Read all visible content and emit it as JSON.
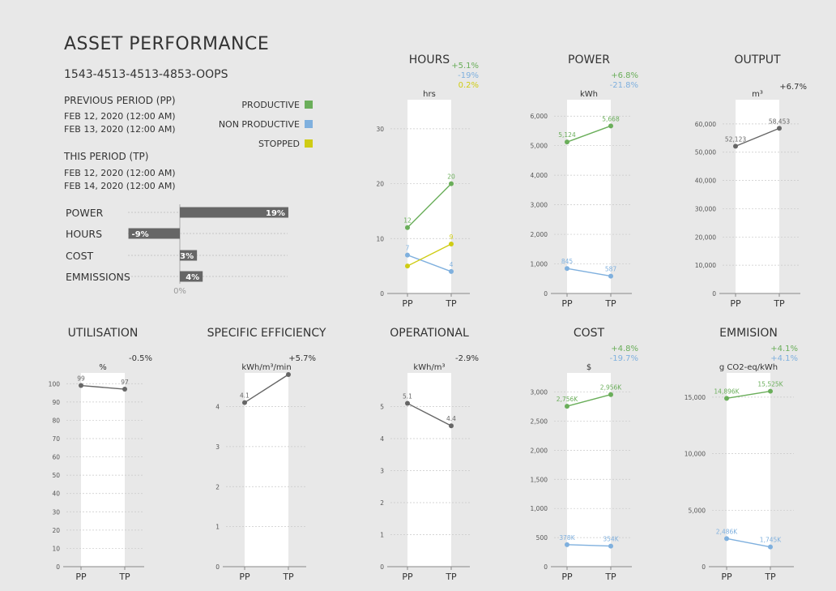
{
  "header": {
    "title": "ASSET PERFORMANCE",
    "asset_id": "1543-4513-4513-4853-OOPS",
    "previous_period": {
      "label": "PREVIOUS PERIOD (PP)",
      "start": "FEB 12, 2020 (12:00 AM)",
      "end": "FEB 13, 2020 (12:00 AM)"
    },
    "this_period": {
      "label": "THIS PERIOD (TP)",
      "start": "FEB 12, 2020 (12:00 AM)",
      "end": "FEB 14, 2020 (12:00 AM)"
    }
  },
  "legend": [
    {
      "label": "PRODUCTIVE",
      "color": "#6aae5a"
    },
    {
      "label": "NON PRODUCTIVE",
      "color": "#7fb0de"
    },
    {
      "label": "STOPPED",
      "color": "#cfcc14"
    }
  ],
  "colors": {
    "productive": "#6aae5a",
    "non_productive": "#7fb0de",
    "stopped": "#cfcc14",
    "single": "#666666",
    "bar": "#666666"
  },
  "chart_data": [
    {
      "id": "summary",
      "type": "bar",
      "orientation": "horizontal",
      "categories": [
        "POWER",
        "HOURS",
        "COST",
        "EMMISSIONS"
      ],
      "values": [
        19,
        -9,
        3,
        4
      ],
      "value_labels": [
        "19%",
        "-9%",
        "3%",
        "4%"
      ],
      "zero_label": "0%"
    },
    {
      "id": "hours",
      "type": "line",
      "title": "HOURS",
      "unit": "hrs",
      "categories": [
        "PP",
        "TP"
      ],
      "ylim": [
        0,
        35
      ],
      "yticks": [
        0,
        10,
        20,
        30
      ],
      "yticklabels": [
        "0",
        "10",
        "20",
        "30"
      ],
      "changes": [
        {
          "text": "+5.1%",
          "color": "#6aae5a"
        },
        {
          "text": "-19%",
          "color": "#7fb0de"
        },
        {
          "text": "0.2%",
          "color": "#cfcc14"
        }
      ],
      "series": [
        {
          "name": "PRODUCTIVE",
          "color": "#6aae5a",
          "values": [
            12,
            20
          ],
          "labels": [
            "12",
            "20"
          ]
        },
        {
          "name": "NON PRODUCTIVE",
          "color": "#7fb0de",
          "values": [
            7,
            4
          ],
          "labels": [
            "7",
            "4"
          ]
        },
        {
          "name": "STOPPED",
          "color": "#cfcc14",
          "values": [
            5,
            9
          ],
          "labels": [
            "",
            "9"
          ]
        }
      ]
    },
    {
      "id": "power",
      "type": "line",
      "title": "POWER",
      "unit": "kWh",
      "categories": [
        "PP",
        "TP"
      ],
      "ylim": [
        0,
        6500
      ],
      "yticks": [
        0,
        1000,
        2000,
        3000,
        4000,
        5000,
        6000
      ],
      "yticklabels": [
        "0",
        "1,000",
        "2,000",
        "3,000",
        "4,000",
        "5,000",
        "6,000"
      ],
      "changes": [
        {
          "text": "+6.8%",
          "color": "#6aae5a"
        },
        {
          "text": "-21.8%",
          "color": "#7fb0de"
        }
      ],
      "series": [
        {
          "name": "PRODUCTIVE",
          "color": "#6aae5a",
          "values": [
            5124,
            5668
          ],
          "labels": [
            "5,124",
            "5,668"
          ]
        },
        {
          "name": "NON PRODUCTIVE",
          "color": "#7fb0de",
          "values": [
            845,
            587
          ],
          "labels": [
            "845",
            "587"
          ]
        }
      ]
    },
    {
      "id": "output",
      "type": "line",
      "title": "OUTPUT",
      "unit": "m³",
      "categories": [
        "PP",
        "TP"
      ],
      "ylim": [
        0,
        68000
      ],
      "yticks": [
        0,
        10000,
        20000,
        30000,
        40000,
        50000,
        60000
      ],
      "yticklabels": [
        "0",
        "10,000",
        "20,000",
        "30,000",
        "40,000",
        "50,000",
        "60,000"
      ],
      "changes": [
        {
          "text": "+6.7%",
          "color": "#333333"
        }
      ],
      "series": [
        {
          "name": "OUTPUT",
          "color": "#666666",
          "values": [
            52123,
            58453
          ],
          "labels": [
            "52,123",
            "58,453"
          ]
        }
      ]
    },
    {
      "id": "utilisation",
      "type": "line",
      "title": "UTILISATION",
      "unit": "%",
      "categories": [
        "PP",
        "TP"
      ],
      "ylim": [
        0,
        105
      ],
      "yticks": [
        0,
        10,
        20,
        30,
        40,
        50,
        60,
        70,
        80,
        90,
        100
      ],
      "yticklabels": [
        "0",
        "10",
        "20",
        "30",
        "40",
        "50",
        "60",
        "70",
        "80",
        "90",
        "100"
      ],
      "changes": [
        {
          "text": "-0.5%",
          "color": "#333333"
        }
      ],
      "series": [
        {
          "name": "UTILISATION",
          "color": "#666666",
          "values": [
            99,
            97
          ],
          "labels": [
            "99",
            "97"
          ]
        }
      ]
    },
    {
      "id": "specific_efficiency",
      "type": "line",
      "title": "SPECIFIC EFFICIENCY",
      "unit": "kWh/m³/min",
      "categories": [
        "PP",
        "TP"
      ],
      "ylim": [
        0,
        4.8
      ],
      "yticks": [
        0,
        1,
        2,
        3,
        4
      ],
      "yticklabels": [
        "0",
        "1",
        "2",
        "3",
        "4"
      ],
      "changes": [
        {
          "text": "+5.7%",
          "color": "#333333"
        }
      ],
      "series": [
        {
          "name": "SPECIFIC EFFICIENCY",
          "color": "#666666",
          "values": [
            4.1,
            4.8
          ],
          "labels": [
            "4.1",
            ""
          ]
        }
      ]
    },
    {
      "id": "operational",
      "type": "line",
      "title": "OPERATIONAL",
      "unit": "kWh/m³",
      "categories": [
        "PP",
        "TP"
      ],
      "ylim": [
        0,
        6
      ],
      "yticks": [
        0,
        1,
        2,
        3,
        4,
        5
      ],
      "yticklabels": [
        "0",
        "1",
        "2",
        "3",
        "4",
        "5"
      ],
      "changes": [
        {
          "text": "-2.9%",
          "color": "#333333"
        }
      ],
      "series": [
        {
          "name": "OPERATIONAL",
          "color": "#666666",
          "values": [
            5.1,
            4.4
          ],
          "labels": [
            "5.1",
            "4.4"
          ]
        }
      ]
    },
    {
      "id": "cost",
      "type": "line",
      "title": "COST",
      "unit": "$",
      "categories": [
        "PP",
        "TP"
      ],
      "ylim": [
        0,
        3300
      ],
      "yticks": [
        0,
        500,
        1000,
        1500,
        2000,
        2500,
        3000
      ],
      "yticklabels": [
        "0",
        "500",
        "1,000",
        "1,500",
        "2,000",
        "2,500",
        "3,000"
      ],
      "changes": [
        {
          "text": "+4.8%",
          "color": "#6aae5a"
        },
        {
          "text": "-19.7%",
          "color": "#7fb0de"
        }
      ],
      "series": [
        {
          "name": "PRODUCTIVE",
          "color": "#6aae5a",
          "values": [
            2756,
            2956
          ],
          "labels": [
            "2,756K",
            "2,956K"
          ]
        },
        {
          "name": "NON PRODUCTIVE",
          "color": "#7fb0de",
          "values": [
            378,
            354
          ],
          "labels": [
            "378K",
            "354K"
          ]
        }
      ]
    },
    {
      "id": "emmision",
      "type": "line",
      "title": "EMMISION",
      "unit": "g CO2-eq/kWh",
      "categories": [
        "PP",
        "TP"
      ],
      "ylim": [
        0,
        17000
      ],
      "yticks": [
        0,
        5000,
        10000,
        15000
      ],
      "yticklabels": [
        "0",
        "5,000",
        "10,000",
        "15,000"
      ],
      "changes": [
        {
          "text": "+4.1%",
          "color": "#6aae5a"
        },
        {
          "text": "+4.1%",
          "color": "#7fb0de"
        }
      ],
      "series": [
        {
          "name": "PRODUCTIVE",
          "color": "#6aae5a",
          "values": [
            14896,
            15525
          ],
          "labels": [
            "14,896K",
            "15,525K"
          ]
        },
        {
          "name": "NON PRODUCTIVE",
          "color": "#7fb0de",
          "values": [
            2486,
            1745
          ],
          "labels": [
            "2,486K",
            "1,745K"
          ]
        }
      ]
    }
  ]
}
